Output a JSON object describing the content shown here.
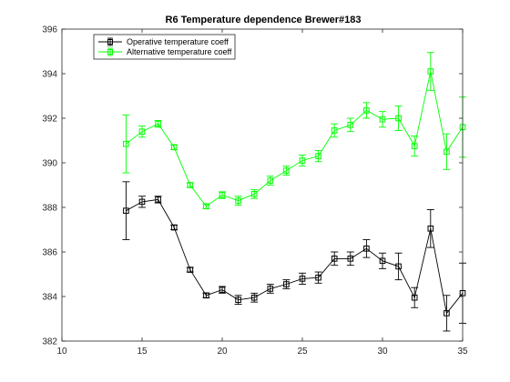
{
  "chart_data": {
    "type": "line",
    "title": "R6 Temperature dependence Brewer#183",
    "xlabel": "",
    "ylabel": "",
    "xlim": [
      10,
      35
    ],
    "ylim": [
      382,
      396
    ],
    "xticks": [
      10,
      15,
      20,
      25,
      30,
      35
    ],
    "yticks": [
      382,
      384,
      386,
      388,
      390,
      392,
      394,
      396
    ],
    "grid": false,
    "legend_position": "top-left",
    "x": [
      14,
      15,
      16,
      17,
      18,
      19,
      20,
      21,
      22,
      23,
      24,
      25,
      26,
      27,
      28,
      29,
      30,
      31,
      32,
      33,
      34,
      35
    ],
    "series": [
      {
        "name": "Operative temperature coeff",
        "color": "#000000",
        "marker": "square",
        "values": [
          387.85,
          388.25,
          388.35,
          387.1,
          385.2,
          384.05,
          384.3,
          383.85,
          383.95,
          384.35,
          384.55,
          384.8,
          384.85,
          385.7,
          385.7,
          386.15,
          385.6,
          385.35,
          383.95,
          387.05,
          383.25,
          384.15
        ],
        "errors": [
          1.3,
          0.25,
          0.15,
          0.1,
          0.1,
          0.1,
          0.15,
          0.2,
          0.2,
          0.2,
          0.2,
          0.25,
          0.25,
          0.3,
          0.3,
          0.4,
          0.35,
          0.6,
          0.45,
          0.85,
          0.8,
          1.35
        ]
      },
      {
        "name": "Alternative temperature coeff",
        "color": "#00ff00",
        "marker": "square",
        "values": [
          390.85,
          391.4,
          391.75,
          390.7,
          389.0,
          388.05,
          388.55,
          388.3,
          388.6,
          389.2,
          389.65,
          390.1,
          390.3,
          391.45,
          391.7,
          392.35,
          391.95,
          392.0,
          390.75,
          394.1,
          390.5,
          391.6
        ],
        "errors": [
          1.3,
          0.25,
          0.15,
          0.1,
          0.1,
          0.1,
          0.15,
          0.2,
          0.2,
          0.2,
          0.2,
          0.25,
          0.25,
          0.3,
          0.3,
          0.35,
          0.35,
          0.55,
          0.45,
          0.85,
          0.8,
          1.35
        ]
      }
    ]
  }
}
